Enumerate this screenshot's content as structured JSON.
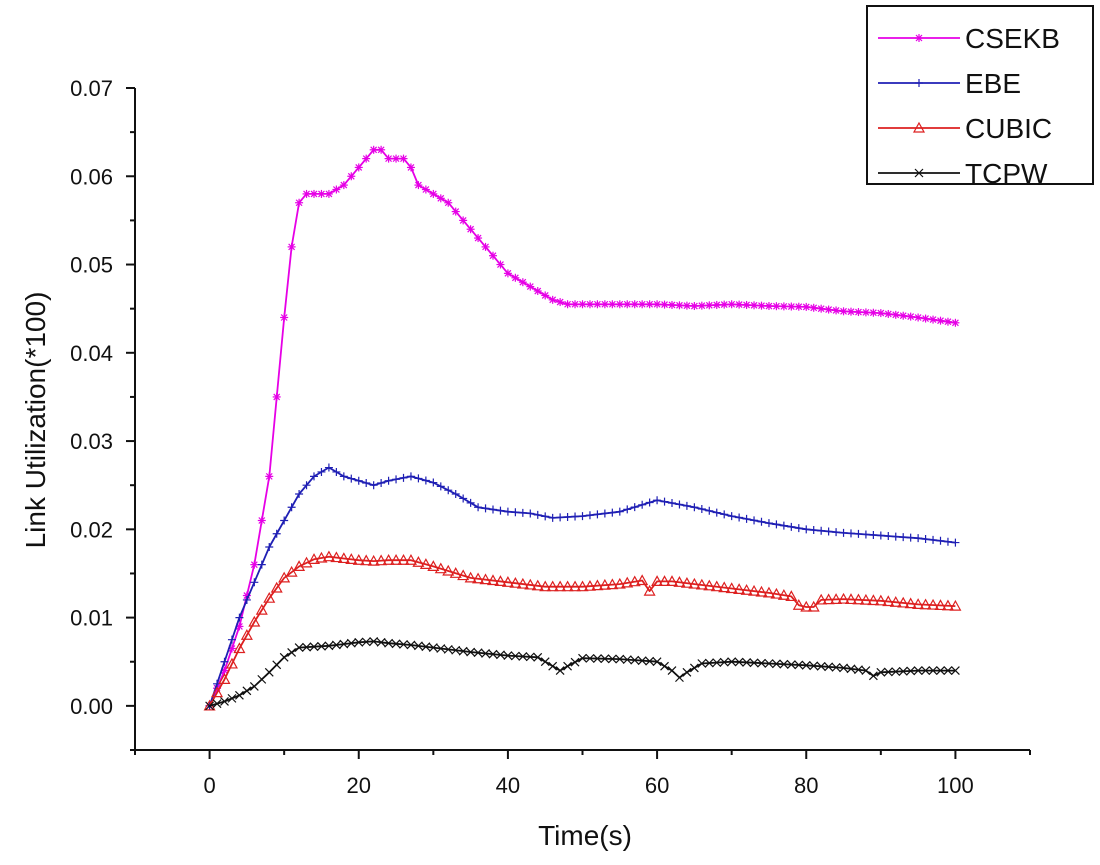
{
  "chart_data": {
    "type": "line",
    "xlabel": "Time(s)",
    "ylabel": "Link Utilization(*100)",
    "xlim": [
      -10,
      110
    ],
    "ylim": [
      -0.005,
      0.07
    ],
    "xticks": [
      0,
      20,
      40,
      60,
      80,
      100
    ],
    "xtick_labels": [
      "0",
      "20",
      "40",
      "60",
      "80",
      "100"
    ],
    "yticks": [
      0.0,
      0.01,
      0.02,
      0.03,
      0.04,
      0.05,
      0.06,
      0.07
    ],
    "ytick_labels": [
      "0.00",
      "0.01",
      "0.02",
      "0.03",
      "0.04",
      "0.05",
      "0.06",
      "0.07"
    ],
    "grid": false,
    "legend_position": "top-right",
    "series": [
      {
        "name": "CSEKB",
        "color": "#e600e6",
        "marker": "asterisk",
        "x": [
          0,
          2,
          4,
          6,
          8,
          10,
          11,
          12,
          13,
          14,
          16,
          18,
          20,
          22,
          23,
          24,
          26,
          27,
          28,
          30,
          32,
          34,
          36,
          38,
          40,
          42,
          44,
          46,
          48,
          50,
          55,
          60,
          65,
          70,
          75,
          80,
          85,
          90,
          95,
          100
        ],
        "values": [
          0.0,
          0.004,
          0.009,
          0.016,
          0.026,
          0.044,
          0.052,
          0.057,
          0.058,
          0.058,
          0.058,
          0.059,
          0.061,
          0.063,
          0.063,
          0.062,
          0.062,
          0.061,
          0.059,
          0.058,
          0.057,
          0.055,
          0.053,
          0.051,
          0.049,
          0.048,
          0.047,
          0.046,
          0.0455,
          0.0455,
          0.0455,
          0.0455,
          0.0453,
          0.0455,
          0.0453,
          0.0452,
          0.0447,
          0.0445,
          0.044,
          0.0434
        ]
      },
      {
        "name": "EBE",
        "color": "#1f1fb4",
        "marker": "plus",
        "x": [
          0,
          2,
          4,
          6,
          8,
          10,
          12,
          14,
          16,
          18,
          20,
          22,
          24,
          27,
          30,
          33,
          36,
          40,
          43,
          46,
          50,
          55,
          60,
          65,
          70,
          75,
          80,
          85,
          90,
          95,
          100
        ],
        "values": [
          0.0,
          0.005,
          0.01,
          0.014,
          0.018,
          0.021,
          0.024,
          0.026,
          0.027,
          0.026,
          0.0255,
          0.025,
          0.0255,
          0.026,
          0.0253,
          0.024,
          0.0225,
          0.022,
          0.0218,
          0.0213,
          0.0215,
          0.022,
          0.0233,
          0.0225,
          0.0215,
          0.0207,
          0.02,
          0.0196,
          0.0193,
          0.019,
          0.0185
        ]
      },
      {
        "name": "CUBIC",
        "color": "#dd2020",
        "marker": "triangle",
        "x": [
          0,
          2,
          4,
          6,
          8,
          10,
          12,
          14,
          16,
          18,
          20,
          22,
          24,
          27,
          30,
          35,
          40,
          45,
          50,
          55,
          58,
          59,
          60,
          62,
          65,
          70,
          75,
          78,
          79,
          80,
          81,
          82,
          85,
          90,
          95,
          100
        ],
        "values": [
          0.0,
          0.003,
          0.0065,
          0.0095,
          0.0122,
          0.0145,
          0.0158,
          0.0166,
          0.0169,
          0.0167,
          0.0165,
          0.0164,
          0.0165,
          0.0165,
          0.0158,
          0.0145,
          0.014,
          0.0135,
          0.0135,
          0.0138,
          0.0142,
          0.013,
          0.0141,
          0.0141,
          0.0138,
          0.0133,
          0.0128,
          0.0124,
          0.0114,
          0.0112,
          0.0112,
          0.012,
          0.0121,
          0.0119,
          0.0115,
          0.0113
        ]
      },
      {
        "name": "TCPW",
        "color": "#111111",
        "marker": "cross",
        "x": [
          0,
          2,
          4,
          6,
          8,
          10,
          12,
          14,
          16,
          18,
          20,
          22,
          24,
          27,
          30,
          35,
          40,
          44,
          46,
          47,
          48,
          50,
          55,
          60,
          62,
          63,
          64,
          66,
          70,
          75,
          80,
          85,
          88,
          89,
          90,
          95,
          100
        ],
        "values": [
          0.0,
          0.0005,
          0.0012,
          0.0022,
          0.0038,
          0.0055,
          0.0066,
          0.0067,
          0.0068,
          0.007,
          0.0072,
          0.0073,
          0.0071,
          0.0069,
          0.0066,
          0.0061,
          0.0057,
          0.0055,
          0.0045,
          0.004,
          0.0045,
          0.0054,
          0.0053,
          0.005,
          0.004,
          0.0032,
          0.0038,
          0.0048,
          0.005,
          0.0048,
          0.0046,
          0.0043,
          0.004,
          0.0034,
          0.0038,
          0.004,
          0.004
        ]
      }
    ]
  }
}
